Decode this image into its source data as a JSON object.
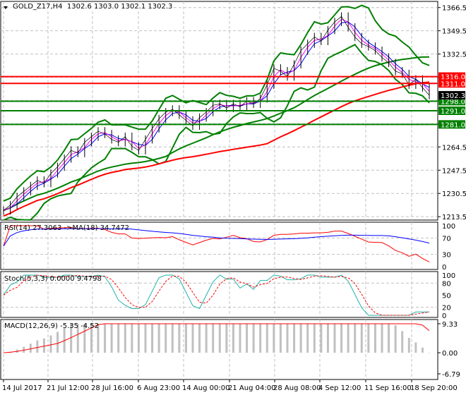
{
  "header": {
    "symbol": "GOLD_Z17,H4",
    "ohlc": "1302.6 1303.0 1302.1 1302.3"
  },
  "colors": {
    "price": "#000000",
    "bollinger": "#008000",
    "ma_red": "#ff0000",
    "ma_green": "#008000",
    "ma_blue": "#0000ff",
    "ma_magenta": "#ff00ff",
    "rsi": "#ff0000",
    "rsi_ma": "#0000ff",
    "stoch_main": "#20b2aa",
    "stoch_signal": "#ff0000",
    "macd_hist": "#c0c0c0",
    "macd_signal": "#ff0000",
    "grid": "#c0c0c0"
  },
  "chart_data": [
    {
      "type": "line",
      "title": "GOLD_Z17,H4",
      "y_ticks": [
        1366.5,
        1349.5,
        1332.5,
        1315.5,
        1298.5,
        1281.5,
        1264.5,
        1247.5,
        1230.5,
        1213.5
      ],
      "y_tick_labels": [
        "1366.5",
        "1349.5",
        "1332.5",
        "",
        "",
        "",
        "1264.5",
        "1247.5",
        "1230.5",
        "1213.5"
      ],
      "ylim": [
        1211,
        1371
      ],
      "x_tick_labels": [
        "14 Jul 2017",
        "21 Jul 12:00",
        "28 Jul 16:00",
        "6 Aug 23:00",
        "14 Aug 00:00",
        "21 Aug 04:00",
        "28 Aug 08:00",
        "4 Sep 12:00",
        "11 Sep 16:00",
        "18 Sep 20:00"
      ],
      "close": [
        1218,
        1222,
        1228,
        1232,
        1236,
        1240,
        1238,
        1245,
        1250,
        1256,
        1262,
        1260,
        1268,
        1272,
        1276,
        1274,
        1270,
        1268,
        1272,
        1265,
        1262,
        1270,
        1278,
        1285,
        1290,
        1292,
        1288,
        1284,
        1280,
        1286,
        1290,
        1295,
        1296,
        1293,
        1296,
        1294,
        1298,
        1296,
        1300,
        1310,
        1322,
        1320,
        1316,
        1325,
        1335,
        1340,
        1345,
        1342,
        1350,
        1356,
        1360,
        1352,
        1345,
        1340,
        1338,
        1335,
        1330,
        1326,
        1320,
        1318,
        1310,
        1314,
        1308,
        1302.3
      ],
      "levels": [
        {
          "value": 1316.0,
          "label": "1316.0",
          "color": "#ff0000"
        },
        {
          "value": 1311.0,
          "label": "1311.0",
          "color": "#ff0000"
        },
        {
          "value": 1298.0,
          "label": "1298.0",
          "color": "#008000"
        },
        {
          "value": 1291.0,
          "label": "1291.0",
          "color": "#008000"
        },
        {
          "value": 1281.0,
          "label": "1281.0",
          "color": "#008000"
        }
      ],
      "current_price": {
        "value": 1302.3,
        "label": "1302.3"
      },
      "grid": true
    },
    {
      "type": "line",
      "title": "RSI(14) 27.3063  ->MA(18) 34.7472",
      "y_ticks": [
        100,
        70,
        30,
        0
      ],
      "ylim": [
        0,
        100
      ]
    },
    {
      "type": "line",
      "title": "Stoch(5,3,3) 0.0000 9.4798",
      "y_ticks": [
        100,
        80,
        50,
        20,
        0
      ],
      "ylim": [
        0,
        100
      ]
    },
    {
      "type": "bar",
      "title": "MACD(12,26,9) -5.35 -4.52",
      "y_ticks": [
        9.33,
        0.0,
        -6.79
      ],
      "y_tick_labels": [
        "9.33",
        "0.00",
        "-6.79"
      ],
      "ylim": [
        -6.79,
        9.33
      ]
    }
  ]
}
